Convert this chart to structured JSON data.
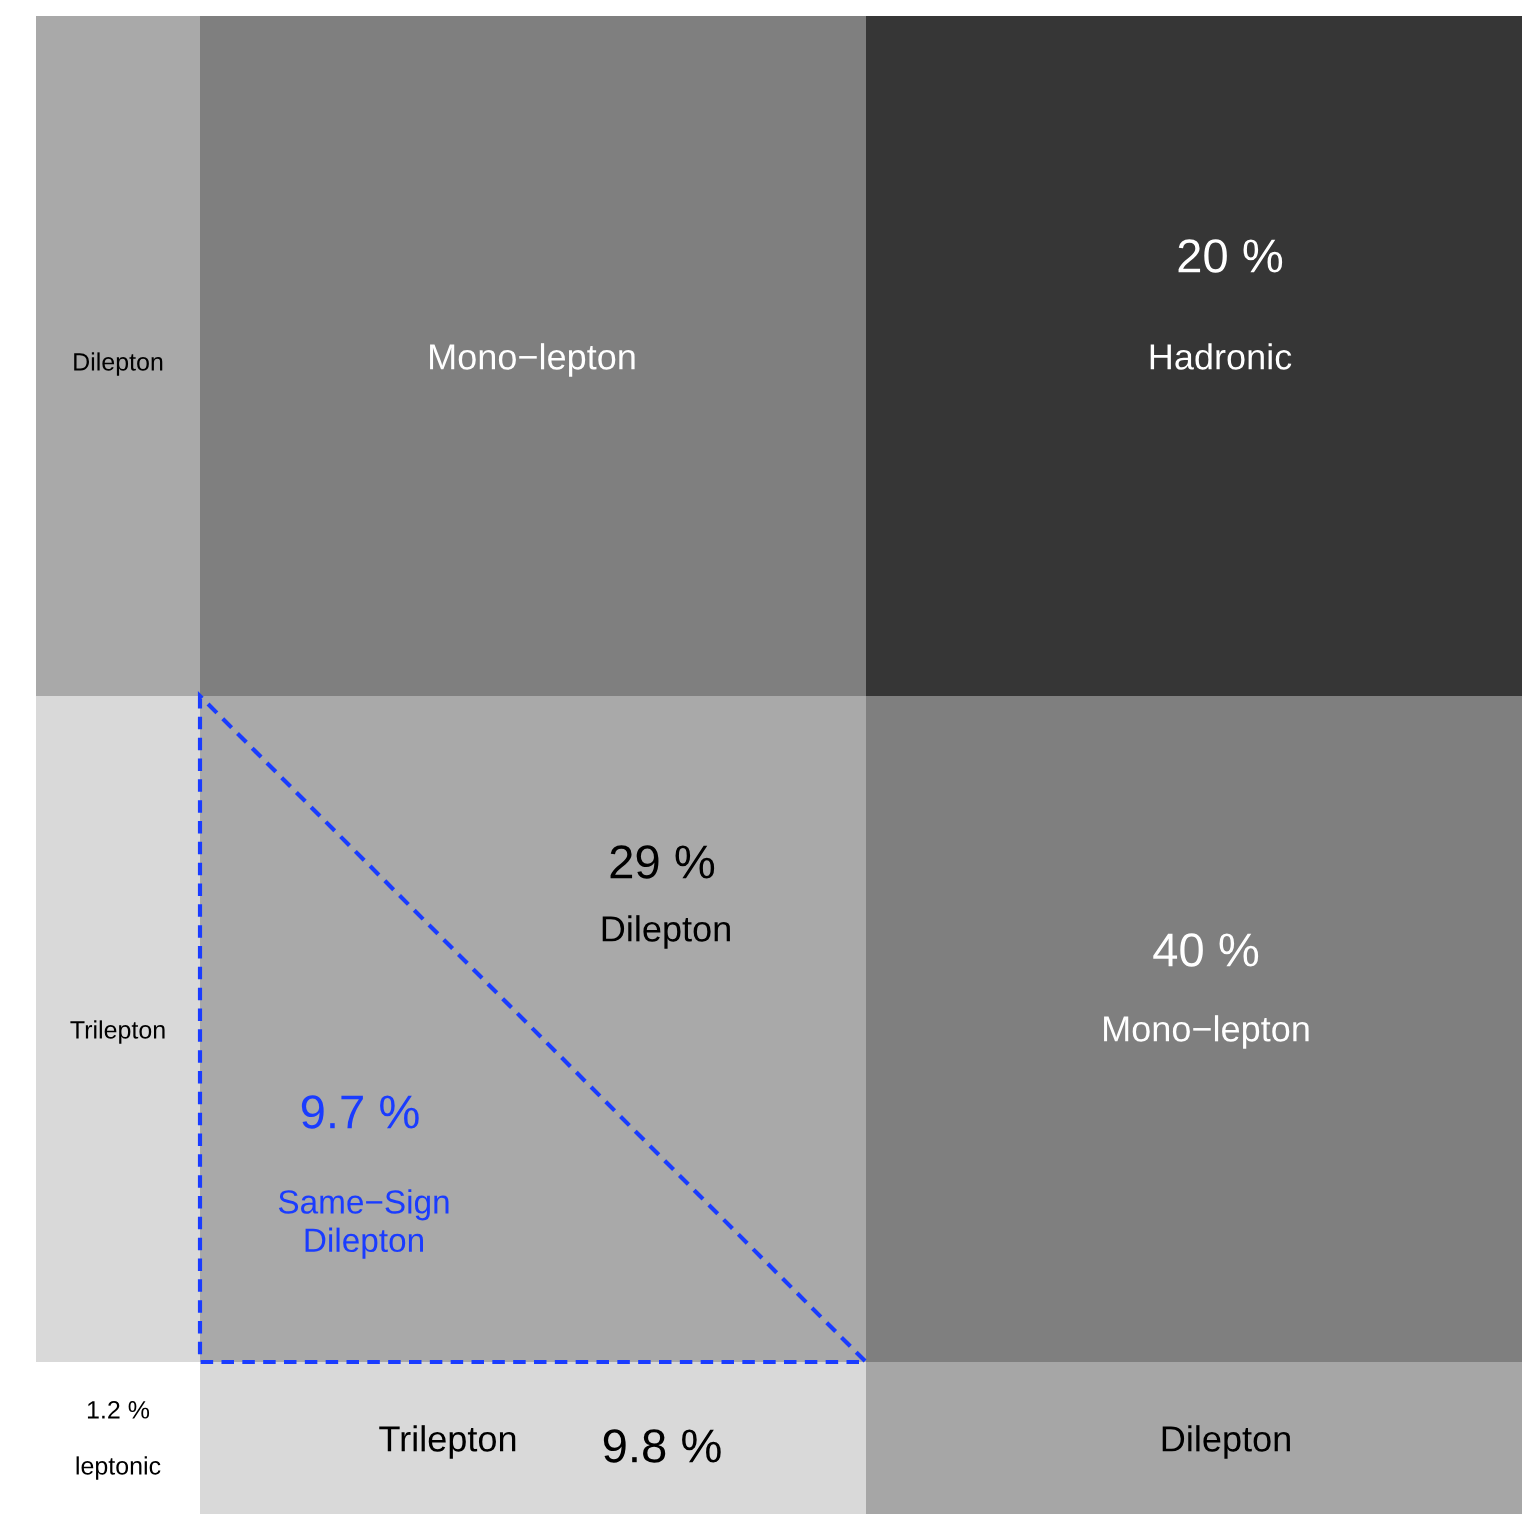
{
  "chart_data": {
    "type": "other",
    "categories": [
      "Dilepton",
      "Mono−lepton",
      "Hadronic",
      "Trilepton",
      "Dilepton",
      "Mono−lepton",
      "leptonic",
      "Trilepton",
      "Dilepton",
      "Same−Sign Dilepton"
    ],
    "values": [
      null,
      null,
      20,
      null,
      29,
      40,
      1.2,
      9.8,
      null,
      9.7
    ],
    "value_labels": [
      null,
      null,
      "20 %",
      null,
      "29 %",
      "40 %",
      "1.2 %",
      "9.8 %",
      null,
      "9.7 %"
    ],
    "colors": [
      "#a9a9a9",
      "#7f7f7f",
      "#363636",
      "#d9d9d9",
      "#a9a9a9",
      "#7f7f7f",
      "#ffffff",
      "#d9d9d9",
      "#a6a6a6",
      "#1a3cff"
    ]
  }
}
